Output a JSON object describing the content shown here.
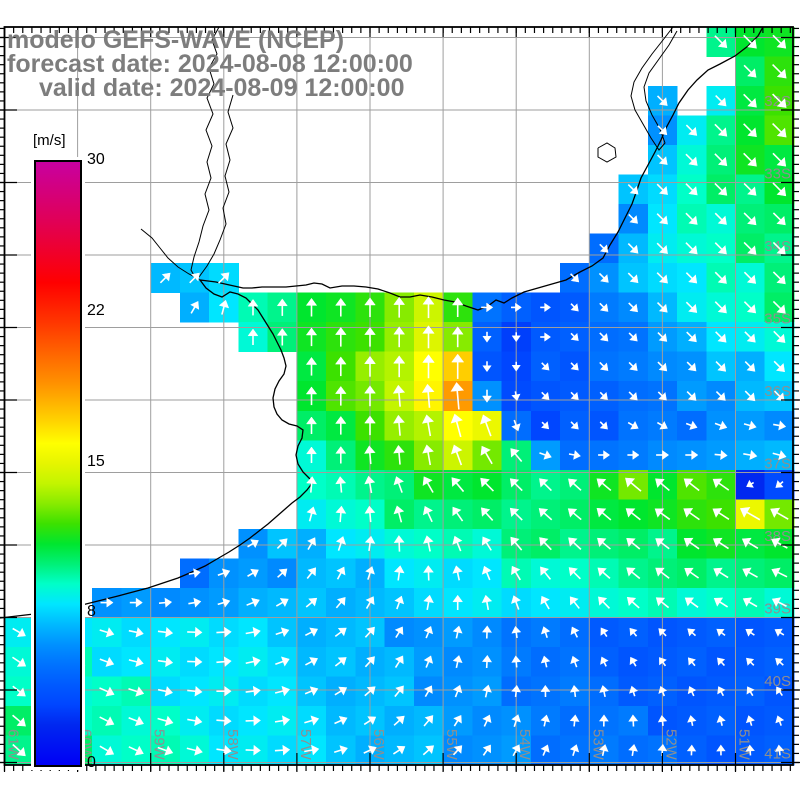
{
  "title": {
    "line1": "modelo GEFS-WAVE (NCEP)",
    "line2": "forecast date: 2024-08-08 12:00:00",
    "line3": "valid date: 2024-08-09 12:00:00"
  },
  "colorbar": {
    "unit": "[m/s]",
    "tick_labels": [
      "30",
      "22",
      "15",
      "8",
      "0"
    ],
    "min": 0,
    "max": 30
  },
  "palette": [
    [
      0,
      "#0000f5"
    ],
    [
      2,
      "#0028f0"
    ],
    [
      3,
      "#0046ff"
    ],
    [
      4,
      "#005aff"
    ],
    [
      5,
      "#0073ff"
    ],
    [
      6,
      "#0091ff"
    ],
    [
      7,
      "#00b9ff"
    ],
    [
      8,
      "#00e6ff"
    ],
    [
      9,
      "#00ffc8"
    ],
    [
      10,
      "#00f078"
    ],
    [
      11,
      "#00e62e"
    ],
    [
      12,
      "#3ce100"
    ],
    [
      13,
      "#87eb00"
    ],
    [
      14,
      "#c3f500"
    ],
    [
      15,
      "#e6f500"
    ],
    [
      16,
      "#ffff00"
    ],
    [
      17,
      "#ffd700"
    ],
    [
      18,
      "#ffb400"
    ],
    [
      19,
      "#ff9100"
    ],
    [
      20,
      "#ff7300"
    ],
    [
      22,
      "#ff3700"
    ],
    [
      24,
      "#ff0000"
    ],
    [
      27,
      "#e10055"
    ],
    [
      30,
      "#c800a0"
    ]
  ],
  "chart_data": {
    "type": "heatmap",
    "subtype": "wind-field-forecast-map",
    "title": "modelo GEFS-WAVE (NCEP)",
    "units": "m/s",
    "colorbar_tick_values": [
      0,
      8,
      15,
      22,
      30
    ],
    "axes": {
      "lat": [
        "32S",
        "33S",
        "34S",
        "35S",
        "36S",
        "37S",
        "38S",
        "39S",
        "40S",
        "41S"
      ],
      "lon": [
        "61W",
        "60W",
        "59W",
        "58W",
        "57W",
        "56W",
        "55W",
        "54W",
        "53W",
        "52W",
        "51W"
      ]
    },
    "wind_grid": {
      "cols": 27,
      "rows": 25,
      "cell_format": "speed_ms:direction_deg_toward (0=E, 90=N, counterclockwise); '.' = land/no data",
      "rows_data": [
        ". . . . . . . . . . . . . . . . . . . . . . . . 10:315 11:315 11:315",
        ". . . . . . . . . . . . . . . . . . . . . . . . . 10:315 12:315",
        ". . . . . . . . . . . . . . . . . . . . . . 7:315 . 8:315 11:315 12:315",
        ". . . . . . . . . . . . . . . . . . . . . . 6:315 8:315 10:315 11:315 12:315",
        ". . . . . . . . . . . . . . . . . . . . . . 7:315 9:315 10:315 11:315 11:315",
        ". . . . . . . . . . . . . . . . . . . . . 7:315 8:315 9:315 10:315 10:315 11:315",
        ". . . . . . . . . . . . . . . . . . . . . 6:315 8:315 9:315 9:315 10:315 10:315",
        ". . . . . . . . . . . . . . . . . . . . 5:315 7:315 8:315 9:315 9:315 10:315 10:315",
        ". . . . . 7:45 7:45 8:45 . . . . . . . . . . . 5:315 6:315 7:315 8:315 8:315 9:315 9:315 10:315",
        ". . . . . . 7:60 8:75 9:90 10:90 11:90 11:90 12:90 13:90 14:90 12:90 5:0 4:0 4:0 4:315 5:315 6:315 7:315 8:315 9:315 9:315 10:315",
        ". . . . . . . . 9:90 10:90 11:90 12:90 12:90 13:90 15:90 13:90 4:270 3:270 4:0 4:315 5:315 5:315 6:315 7:315 8:315 8:315 9:315",
        ". . . . . . . . . . 11:90 12:90 13:90 14:90 16:90 17:90 4:270 3:270 4:315 4:315 5:315 5:315 6:315 6:315 7:315 7:315 8:315",
        ". . . . . . . . . . 11:90 12:90 13:90 14:95 16:95 19:95 6:270 3:280 4:315 4:315 4:315 5:315 5:315 6:315 6:315 7:315 7:315",
        ". . . . . . . . . . 10:90 11:90 12:90 13:95 14:100 16:105 15:110 5:290 3:315 4:315 4:315 5:330 5:330 5:340 6:340 6:345 6:350",
        ". . . . . . . . . . 9:90 10:90 11:95 12:95 13:100 14:110 13:120 10:130 6:340 5:350 5:0 5:0 6:0 6:0 6:355 7:350 7:345",
        ". . . . . . . . . . 9:85 9:95 10:100 10:110 11:120 11:130 11:135 10:135 10:135 10:138 11:140 13:140 11:140 12:142 12:145 2:210 3:220",
        ". . . . . . . . . . 8:75 9:85 9:95 10:105 10:115 10:125 10:132 10:135 10:138 10:140 11:140 11:142 11:144 12:145 12:147 15:150 13:150",
        ". . . . . . . . 6:30 7:45 7:60 8:72 8:82 9:92 9:102 9:112 9:122 10:130 10:134 10:137 10:140 10:141 10:143 11:145 11:147 11:149 11:151",
        ". . . . . . 5:10 6:20 6:30 6:42 7:52 7:62 7:72 8:82 8:92 8:102 8:112 9:121 9:129 9:135 9:139 10:141 10:143 10:145 10:148 10:151 10:154",
        ". . . 6:0 6:0 6:5 6:10 6:16 7:22 7:30 7:40 7:50 7:60 7:70 8:80 8:90 8:100 8:110 8:120 8:128 9:134 9:138 9:141 9:144 9:147 9:150 9:153",
        "8:330 8:334 8:338 8:343 8:348 8:353 8:358 8:3 8:10 7:18 7:27 7:37 7:48 6:58 6:68 6:78 6:88 5:98 5:108 5:117 4:124 4:130 4:135 4:139 4:143 4:146 4:149",
        "9:326 9:330 9:335 8:340 8:346 8:352 8:358 8:5 8:12 8:20 7:28 7:38 7:48 7:58 6:68 6:78 6:87 5:95 5:103 5:110 4:116 4:121 4:126 4:130 4:133 4:136 4:139",
        "9:322 9:326 9:331 9:336 9:342 8:348 8:354 8:0 8:7 8:14 7:22 7:31 7:41 7:51 6:60 6:69 6:77 5:84 5:91 5:97 5:102 4:107 4:111 4:115 4:118 4:121 4:124",
        "10:320 10:324 9:328 9:333 9:338 9:344 8:350 8:356 8:2 8:9 8:16 7:24 7:33 7:42 7:50 6:58 6:65 6:72 5:78 5:84 5:89 5:93 4:97 4:101 4:104 4:107 4:110",
        "10:318 10:322 10:326 9:330 9:335 9:340 9:346 8:352 8:358 8:4 8:10 7:17 7:25 7:33 7:41 6:48 6:55 6:61 5:67 5:72 5:77 5:81 5:85 4:88 4:91 4:94 4:97"
      ]
    }
  }
}
